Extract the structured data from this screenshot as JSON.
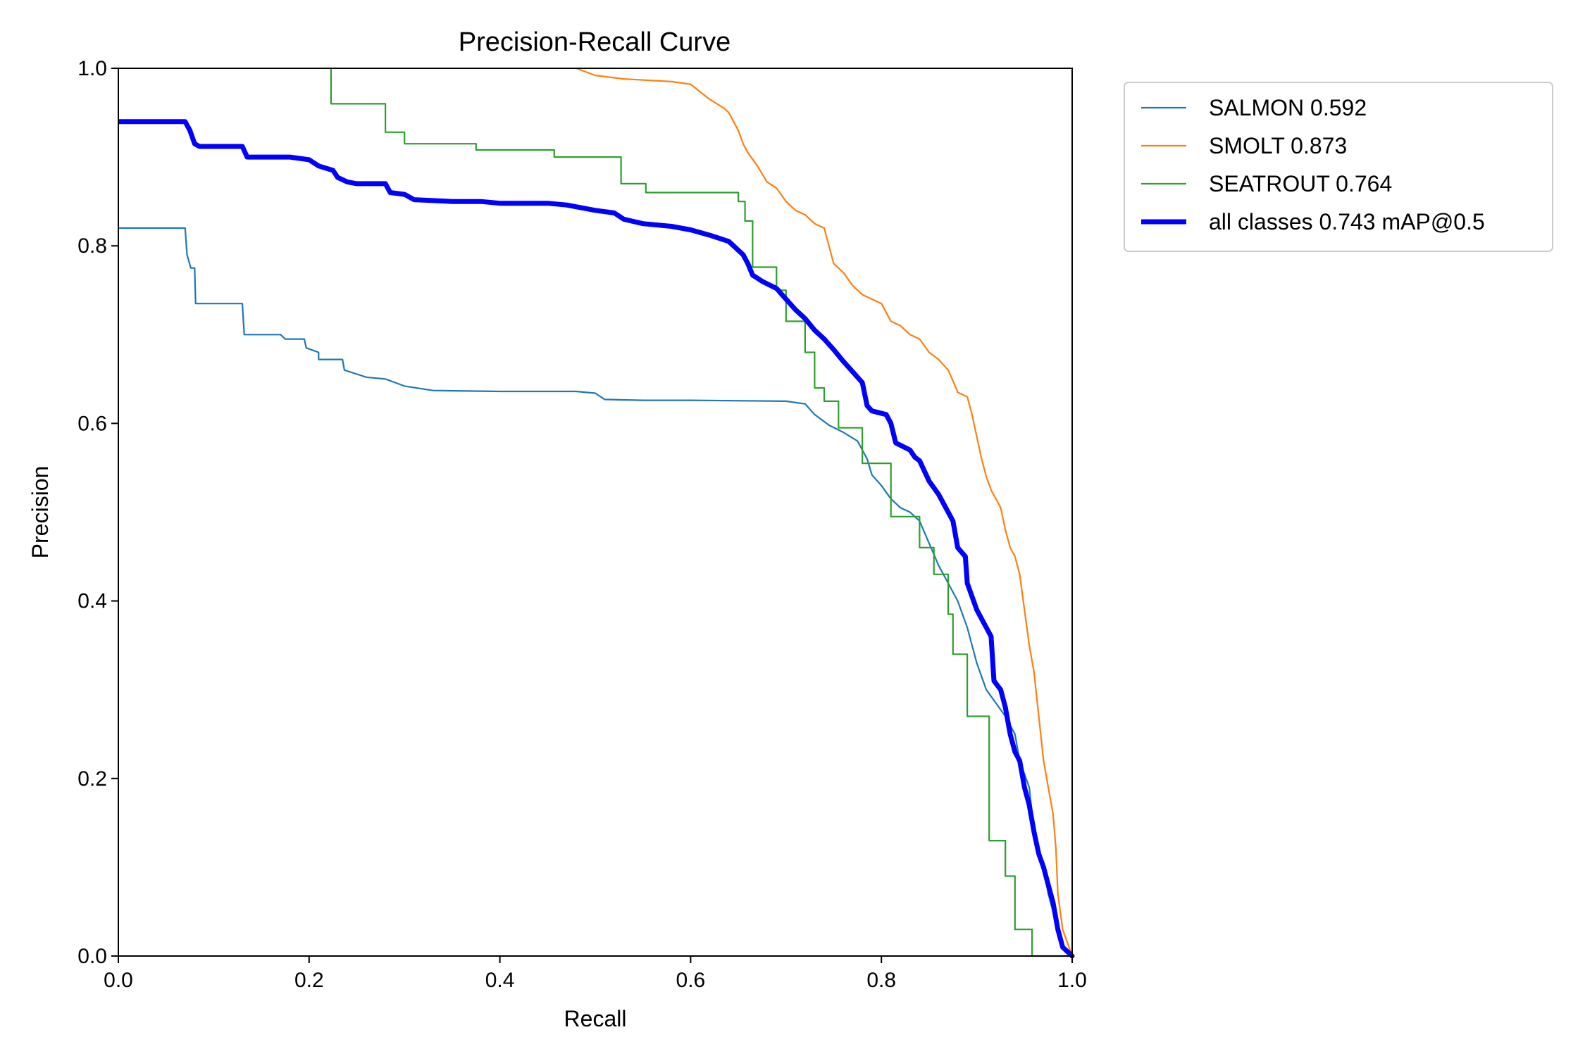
{
  "chart_data": {
    "type": "line",
    "title": "Precision-Recall Curve",
    "xlabel": "Recall",
    "ylabel": "Precision",
    "xlim": [
      0,
      1
    ],
    "ylim": [
      0,
      1
    ],
    "xticks": [
      "0.0",
      "0.2",
      "0.4",
      "0.6",
      "0.8",
      "1.0"
    ],
    "yticks": [
      "0.0",
      "0.2",
      "0.4",
      "0.6",
      "0.8",
      "1.0"
    ],
    "grid": false,
    "legend_position": "outside-top-right",
    "series": [
      {
        "name": "SALMON 0.592",
        "color": "#1f77b4",
        "linewidth": "thin",
        "points": [
          [
            0.0,
            0.82
          ],
          [
            0.07,
            0.82
          ],
          [
            0.072,
            0.79
          ],
          [
            0.076,
            0.775
          ],
          [
            0.08,
            0.775
          ],
          [
            0.081,
            0.735
          ],
          [
            0.13,
            0.735
          ],
          [
            0.132,
            0.7
          ],
          [
            0.17,
            0.7
          ],
          [
            0.175,
            0.695
          ],
          [
            0.195,
            0.695
          ],
          [
            0.197,
            0.685
          ],
          [
            0.21,
            0.68
          ],
          [
            0.21,
            0.672
          ],
          [
            0.235,
            0.672
          ],
          [
            0.237,
            0.66
          ],
          [
            0.26,
            0.652
          ],
          [
            0.28,
            0.65
          ],
          [
            0.3,
            0.642
          ],
          [
            0.33,
            0.637
          ],
          [
            0.4,
            0.636
          ],
          [
            0.48,
            0.636
          ],
          [
            0.5,
            0.634
          ],
          [
            0.51,
            0.627
          ],
          [
            0.55,
            0.626
          ],
          [
            0.6,
            0.626
          ],
          [
            0.7,
            0.625
          ],
          [
            0.72,
            0.622
          ],
          [
            0.73,
            0.61
          ],
          [
            0.745,
            0.598
          ],
          [
            0.76,
            0.59
          ],
          [
            0.775,
            0.58
          ],
          [
            0.785,
            0.56
          ],
          [
            0.79,
            0.542
          ],
          [
            0.8,
            0.53
          ],
          [
            0.81,
            0.515
          ],
          [
            0.82,
            0.505
          ],
          [
            0.83,
            0.5
          ],
          [
            0.84,
            0.49
          ],
          [
            0.85,
            0.465
          ],
          [
            0.86,
            0.44
          ],
          [
            0.87,
            0.42
          ],
          [
            0.88,
            0.4
          ],
          [
            0.89,
            0.37
          ],
          [
            0.9,
            0.33
          ],
          [
            0.91,
            0.3
          ],
          [
            0.92,
            0.285
          ],
          [
            0.93,
            0.27
          ],
          [
            0.94,
            0.25
          ],
          [
            0.945,
            0.22
          ],
          [
            0.955,
            0.19
          ],
          [
            0.96,
            0.14
          ],
          [
            0.965,
            0.12
          ],
          [
            0.97,
            0.1
          ],
          [
            0.975,
            0.07
          ],
          [
            0.98,
            0.05
          ],
          [
            0.985,
            0.03
          ],
          [
            0.99,
            0.01
          ],
          [
            1.0,
            0.0
          ]
        ]
      },
      {
        "name": "SMOLT 0.873",
        "color": "#ff7f0e",
        "linewidth": "thin",
        "points": [
          [
            0.48,
            1.0
          ],
          [
            0.5,
            0.992
          ],
          [
            0.53,
            0.988
          ],
          [
            0.58,
            0.985
          ],
          [
            0.6,
            0.982
          ],
          [
            0.62,
            0.965
          ],
          [
            0.635,
            0.955
          ],
          [
            0.64,
            0.95
          ],
          [
            0.645,
            0.94
          ],
          [
            0.65,
            0.93
          ],
          [
            0.655,
            0.915
          ],
          [
            0.66,
            0.905
          ],
          [
            0.67,
            0.89
          ],
          [
            0.68,
            0.872
          ],
          [
            0.69,
            0.865
          ],
          [
            0.7,
            0.85
          ],
          [
            0.71,
            0.84
          ],
          [
            0.72,
            0.835
          ],
          [
            0.73,
            0.825
          ],
          [
            0.74,
            0.82
          ],
          [
            0.745,
            0.8
          ],
          [
            0.75,
            0.78
          ],
          [
            0.76,
            0.77
          ],
          [
            0.77,
            0.755
          ],
          [
            0.78,
            0.745
          ],
          [
            0.79,
            0.74
          ],
          [
            0.8,
            0.735
          ],
          [
            0.81,
            0.715
          ],
          [
            0.82,
            0.71
          ],
          [
            0.83,
            0.7
          ],
          [
            0.84,
            0.695
          ],
          [
            0.85,
            0.68
          ],
          [
            0.86,
            0.672
          ],
          [
            0.87,
            0.66
          ],
          [
            0.875,
            0.648
          ],
          [
            0.88,
            0.635
          ],
          [
            0.89,
            0.63
          ],
          [
            0.895,
            0.61
          ],
          [
            0.9,
            0.585
          ],
          [
            0.905,
            0.56
          ],
          [
            0.91,
            0.54
          ],
          [
            0.915,
            0.525
          ],
          [
            0.92,
            0.515
          ],
          [
            0.925,
            0.505
          ],
          [
            0.93,
            0.48
          ],
          [
            0.935,
            0.46
          ],
          [
            0.94,
            0.45
          ],
          [
            0.945,
            0.43
          ],
          [
            0.95,
            0.39
          ],
          [
            0.955,
            0.35
          ],
          [
            0.96,
            0.32
          ],
          [
            0.965,
            0.27
          ],
          [
            0.97,
            0.22
          ],
          [
            0.975,
            0.19
          ],
          [
            0.98,
            0.16
          ],
          [
            0.983,
            0.12
          ],
          [
            0.985,
            0.07
          ],
          [
            0.99,
            0.03
          ],
          [
            1.0,
            0.0
          ]
        ]
      },
      {
        "name": "SEATROUT 0.764",
        "color": "#2ca02c",
        "linewidth": "thin",
        "points": [
          [
            0.223,
            1.0
          ],
          [
            0.223,
            0.96
          ],
          [
            0.28,
            0.96
          ],
          [
            0.28,
            0.928
          ],
          [
            0.3,
            0.928
          ],
          [
            0.3,
            0.915
          ],
          [
            0.375,
            0.915
          ],
          [
            0.375,
            0.908
          ],
          [
            0.457,
            0.908
          ],
          [
            0.457,
            0.9
          ],
          [
            0.527,
            0.9
          ],
          [
            0.527,
            0.87
          ],
          [
            0.553,
            0.87
          ],
          [
            0.553,
            0.86
          ],
          [
            0.65,
            0.86
          ],
          [
            0.65,
            0.85
          ],
          [
            0.657,
            0.85
          ],
          [
            0.657,
            0.828
          ],
          [
            0.665,
            0.828
          ],
          [
            0.665,
            0.776
          ],
          [
            0.69,
            0.776
          ],
          [
            0.69,
            0.75
          ],
          [
            0.7,
            0.75
          ],
          [
            0.7,
            0.715
          ],
          [
            0.72,
            0.715
          ],
          [
            0.72,
            0.68
          ],
          [
            0.73,
            0.68
          ],
          [
            0.73,
            0.64
          ],
          [
            0.74,
            0.64
          ],
          [
            0.74,
            0.625
          ],
          [
            0.755,
            0.625
          ],
          [
            0.755,
            0.595
          ],
          [
            0.78,
            0.595
          ],
          [
            0.78,
            0.555
          ],
          [
            0.81,
            0.555
          ],
          [
            0.81,
            0.495
          ],
          [
            0.84,
            0.495
          ],
          [
            0.84,
            0.46
          ],
          [
            0.855,
            0.46
          ],
          [
            0.855,
            0.43
          ],
          [
            0.87,
            0.43
          ],
          [
            0.87,
            0.385
          ],
          [
            0.875,
            0.385
          ],
          [
            0.875,
            0.34
          ],
          [
            0.89,
            0.34
          ],
          [
            0.89,
            0.27
          ],
          [
            0.913,
            0.27
          ],
          [
            0.913,
            0.13
          ],
          [
            0.93,
            0.13
          ],
          [
            0.93,
            0.09
          ],
          [
            0.94,
            0.09
          ],
          [
            0.94,
            0.03
          ],
          [
            0.958,
            0.03
          ],
          [
            0.958,
            0.0
          ],
          [
            1.0,
            0.0
          ]
        ]
      },
      {
        "name": "all classes 0.743 mAP@0.5",
        "color": "#0000ff",
        "linewidth": "thick",
        "points": [
          [
            0.0,
            0.94
          ],
          [
            0.07,
            0.94
          ],
          [
            0.075,
            0.93
          ],
          [
            0.08,
            0.915
          ],
          [
            0.085,
            0.912
          ],
          [
            0.13,
            0.912
          ],
          [
            0.135,
            0.9
          ],
          [
            0.18,
            0.9
          ],
          [
            0.2,
            0.897
          ],
          [
            0.21,
            0.89
          ],
          [
            0.225,
            0.885
          ],
          [
            0.23,
            0.877
          ],
          [
            0.24,
            0.872
          ],
          [
            0.25,
            0.87
          ],
          [
            0.28,
            0.87
          ],
          [
            0.285,
            0.86
          ],
          [
            0.3,
            0.858
          ],
          [
            0.31,
            0.852
          ],
          [
            0.35,
            0.85
          ],
          [
            0.38,
            0.85
          ],
          [
            0.4,
            0.848
          ],
          [
            0.45,
            0.848
          ],
          [
            0.47,
            0.846
          ],
          [
            0.5,
            0.84
          ],
          [
            0.52,
            0.837
          ],
          [
            0.53,
            0.83
          ],
          [
            0.55,
            0.825
          ],
          [
            0.58,
            0.822
          ],
          [
            0.6,
            0.818
          ],
          [
            0.62,
            0.812
          ],
          [
            0.64,
            0.805
          ],
          [
            0.645,
            0.8
          ],
          [
            0.655,
            0.79
          ],
          [
            0.66,
            0.78
          ],
          [
            0.665,
            0.767
          ],
          [
            0.675,
            0.76
          ],
          [
            0.69,
            0.752
          ],
          [
            0.7,
            0.74
          ],
          [
            0.71,
            0.728
          ],
          [
            0.72,
            0.718
          ],
          [
            0.73,
            0.705
          ],
          [
            0.74,
            0.695
          ],
          [
            0.75,
            0.683
          ],
          [
            0.76,
            0.67
          ],
          [
            0.77,
            0.658
          ],
          [
            0.78,
            0.646
          ],
          [
            0.785,
            0.62
          ],
          [
            0.79,
            0.614
          ],
          [
            0.805,
            0.61
          ],
          [
            0.81,
            0.6
          ],
          [
            0.815,
            0.578
          ],
          [
            0.83,
            0.57
          ],
          [
            0.835,
            0.562
          ],
          [
            0.84,
            0.558
          ],
          [
            0.85,
            0.535
          ],
          [
            0.86,
            0.52
          ],
          [
            0.87,
            0.5
          ],
          [
            0.875,
            0.49
          ],
          [
            0.88,
            0.46
          ],
          [
            0.888,
            0.45
          ],
          [
            0.89,
            0.42
          ],
          [
            0.9,
            0.39
          ],
          [
            0.91,
            0.37
          ],
          [
            0.915,
            0.36
          ],
          [
            0.918,
            0.31
          ],
          [
            0.925,
            0.3
          ],
          [
            0.93,
            0.28
          ],
          [
            0.935,
            0.25
          ],
          [
            0.94,
            0.23
          ],
          [
            0.945,
            0.22
          ],
          [
            0.95,
            0.19
          ],
          [
            0.955,
            0.17
          ],
          [
            0.96,
            0.14
          ],
          [
            0.965,
            0.115
          ],
          [
            0.97,
            0.1
          ],
          [
            0.975,
            0.08
          ],
          [
            0.98,
            0.06
          ],
          [
            0.985,
            0.03
          ],
          [
            0.99,
            0.01
          ],
          [
            1.0,
            0.0
          ]
        ]
      }
    ]
  }
}
